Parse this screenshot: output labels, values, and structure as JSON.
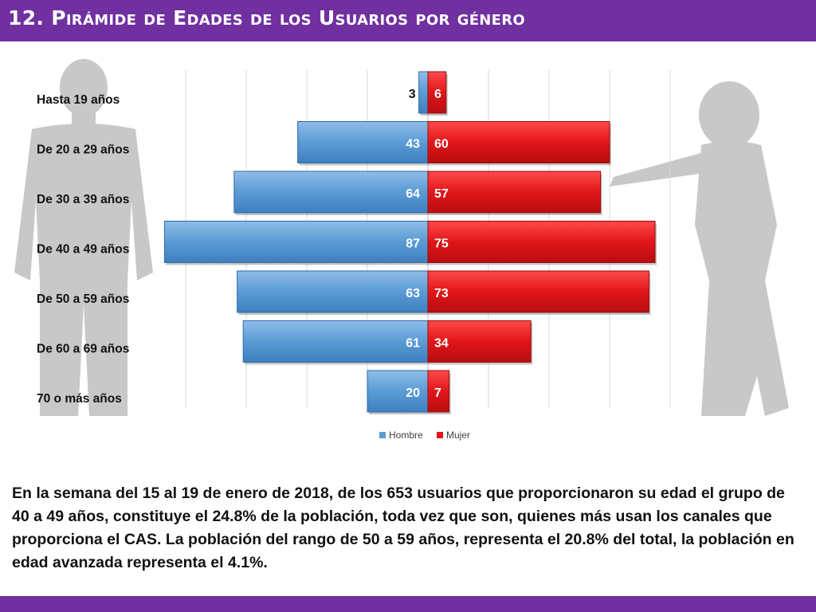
{
  "header": {
    "title": "12. Pirámide de Edades de los Usuarios por género"
  },
  "chart_data": {
    "type": "bar",
    "orientation": "horizontal-pyramid",
    "categories": [
      "Hasta 19 años",
      "De 20 a 29 años",
      "De 30 a 39 años",
      "De 40 a 49 años",
      "De 50 a 59 años",
      "De 60 a 69 años",
      "70 o más años"
    ],
    "series": [
      {
        "name": "Hombre",
        "color": "#5b9bd5",
        "values": [
          3,
          43,
          64,
          87,
          63,
          61,
          20
        ]
      },
      {
        "name": "Mujer",
        "color": "#e0161a",
        "values": [
          6,
          60,
          57,
          75,
          73,
          34,
          7
        ]
      }
    ],
    "grid": true,
    "legend": "bottom-center",
    "title": "",
    "xlabel": "",
    "ylabel": ""
  },
  "description": "En la semana del 15 al 19 de enero de 2018, de los 653 usuarios  que proporcionaron su edad el grupo de 40 a 49 años, constituye el 24.8% de la población, toda vez que son, quienes más usan los canales que proporciona el CAS. La población del rango de 50 a 59 años, representa el 20.8% del total, la población en edad avanzada representa el 4.1%.",
  "colors": {
    "header_bg": "#7030a0",
    "silhouette": "#c8c8c8"
  }
}
